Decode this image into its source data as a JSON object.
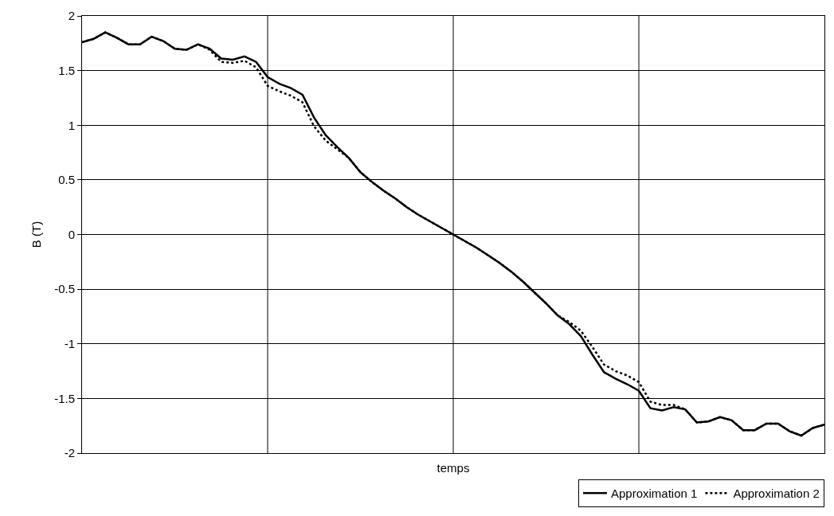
{
  "chart_data": {
    "type": "line",
    "xlabel": "temps",
    "ylabel": "B (T)",
    "categories": [
      null,
      null,
      null,
      null,
      null,
      null,
      null,
      null,
      null,
      null,
      null,
      null,
      null,
      null,
      null,
      null,
      null,
      null,
      null,
      null,
      null,
      null,
      null,
      null,
      null,
      null,
      null,
      null,
      null,
      null,
      null,
      null,
      null,
      null,
      null,
      null,
      null,
      null,
      null,
      null,
      null,
      null,
      null,
      null,
      null,
      null,
      null,
      null,
      null,
      null,
      null,
      null,
      null,
      null,
      null,
      null,
      null,
      null,
      null,
      null,
      null,
      null,
      null,
      null,
      null
    ],
    "series": [
      {
        "name": "Approximation 1",
        "color": "#000000",
        "line_style": "solid",
        "values": [
          1.76,
          1.79,
          1.85,
          1.8,
          1.74,
          1.74,
          1.81,
          1.77,
          1.7,
          1.69,
          1.74,
          1.7,
          1.61,
          1.6,
          1.63,
          1.58,
          1.44,
          1.38,
          1.34,
          1.28,
          1.07,
          0.91,
          0.8,
          0.7,
          0.57,
          0.48,
          0.4,
          0.33,
          0.25,
          0.18,
          0.12,
          0.06,
          0.0,
          -0.06,
          -0.12,
          -0.19,
          -0.26,
          -0.34,
          -0.43,
          -0.53,
          -0.63,
          -0.74,
          -0.82,
          -0.93,
          -1.1,
          -1.26,
          -1.32,
          -1.37,
          -1.43,
          -1.59,
          -1.61,
          -1.58,
          -1.6,
          -1.72,
          -1.71,
          -1.67,
          -1.7,
          -1.79,
          -1.79,
          -1.73,
          -1.73,
          -1.8,
          -1.84,
          -1.77,
          -1.74
        ]
      },
      {
        "name": "Approximation 2",
        "color": "#000000",
        "line_style": "dotted",
        "values": [
          1.76,
          1.79,
          1.85,
          1.8,
          1.74,
          1.74,
          1.81,
          1.77,
          1.7,
          1.69,
          1.74,
          1.69,
          1.58,
          1.57,
          1.59,
          1.53,
          1.36,
          1.31,
          1.27,
          1.21,
          0.99,
          0.86,
          0.78,
          0.7,
          0.57,
          0.48,
          0.4,
          0.33,
          0.25,
          0.18,
          0.12,
          0.06,
          0.0,
          -0.06,
          -0.12,
          -0.19,
          -0.26,
          -0.34,
          -0.43,
          -0.53,
          -0.63,
          -0.74,
          -0.8,
          -0.88,
          -1.03,
          -1.19,
          -1.25,
          -1.29,
          -1.35,
          -1.53,
          -1.56,
          -1.56,
          -1.6,
          -1.72,
          -1.71,
          -1.67,
          -1.7,
          -1.79,
          -1.79,
          -1.73,
          -1.73,
          -1.8,
          -1.84,
          -1.77,
          -1.74
        ]
      }
    ],
    "ylim": [
      -2,
      2
    ],
    "yticks": [
      -2,
      -1.5,
      -1,
      -0.5,
      0,
      0.5,
      1,
      1.5,
      2
    ],
    "grid": true,
    "legend": "bottom right",
    "marker": "none"
  }
}
